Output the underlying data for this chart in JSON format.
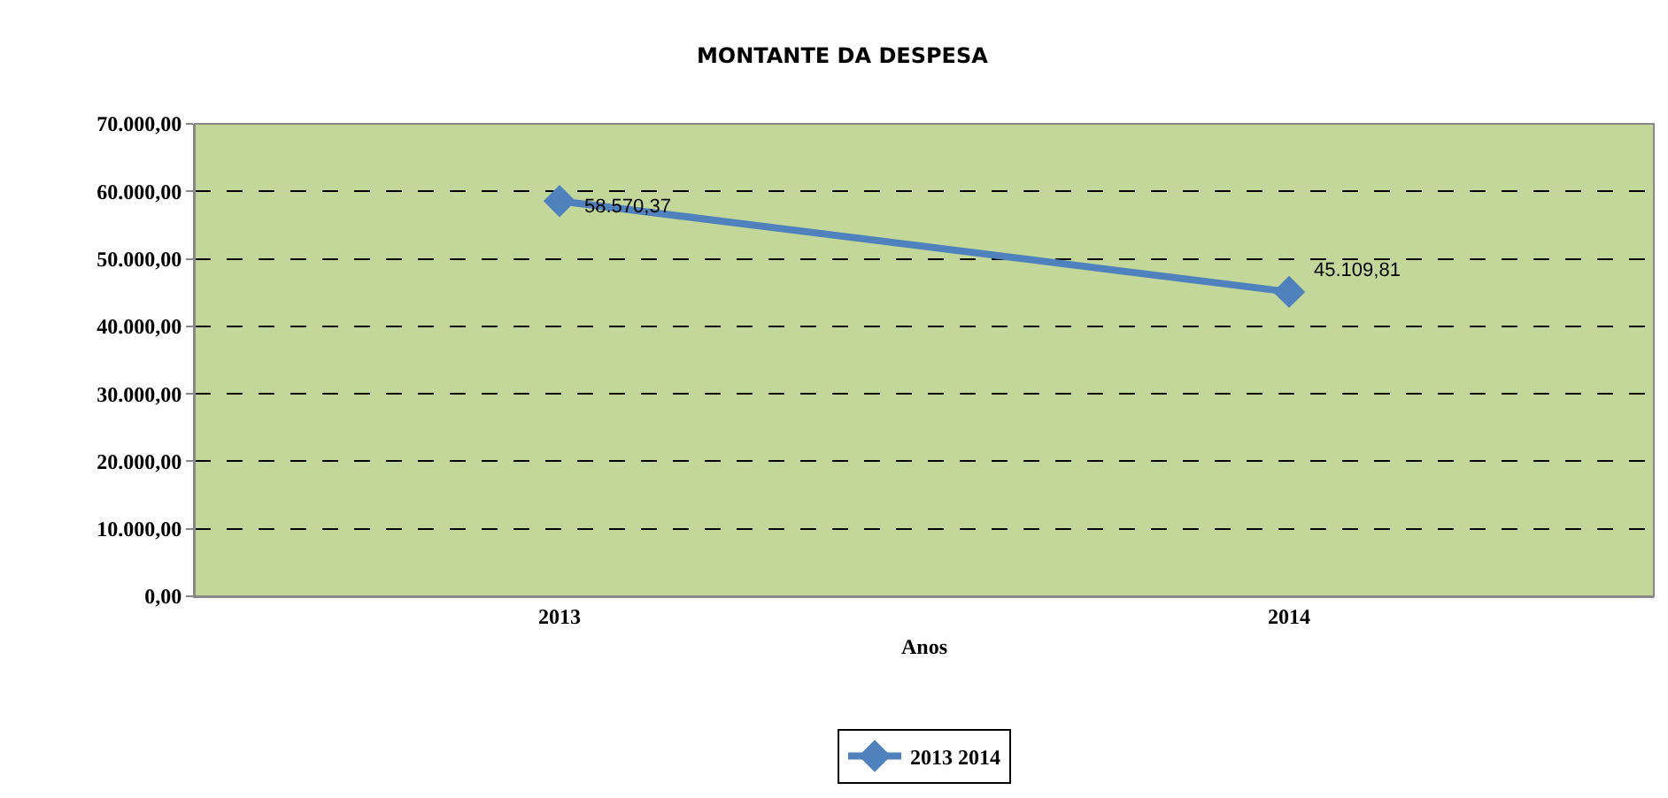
{
  "chart_data": {
    "type": "line",
    "title": "MONTANTE DA DESPESA",
    "xlabel": "Anos",
    "categories": [
      "2013",
      "2014"
    ],
    "series": [
      {
        "name": "2013 2014",
        "color": "#4f81bd",
        "values": [
          58570.37,
          45109.81
        ],
        "value_labels": [
          "58.570,37",
          "45.109,81"
        ]
      }
    ],
    "ylim": [
      0,
      70000
    ],
    "yticks": [
      {
        "value": 0,
        "label": "0,00"
      },
      {
        "value": 10000,
        "label": "10.000,00"
      },
      {
        "value": 20000,
        "label": "20.000,00"
      },
      {
        "value": 30000,
        "label": "30.000,00"
      },
      {
        "value": 40000,
        "label": "40.000,00"
      },
      {
        "value": 50000,
        "label": "50.000,00"
      },
      {
        "value": 60000,
        "label": "60.000,00"
      },
      {
        "value": 70000,
        "label": "70.000,00"
      }
    ],
    "grid": "y",
    "legend": "bottom",
    "marker": "diamond",
    "line_style": "solid"
  }
}
